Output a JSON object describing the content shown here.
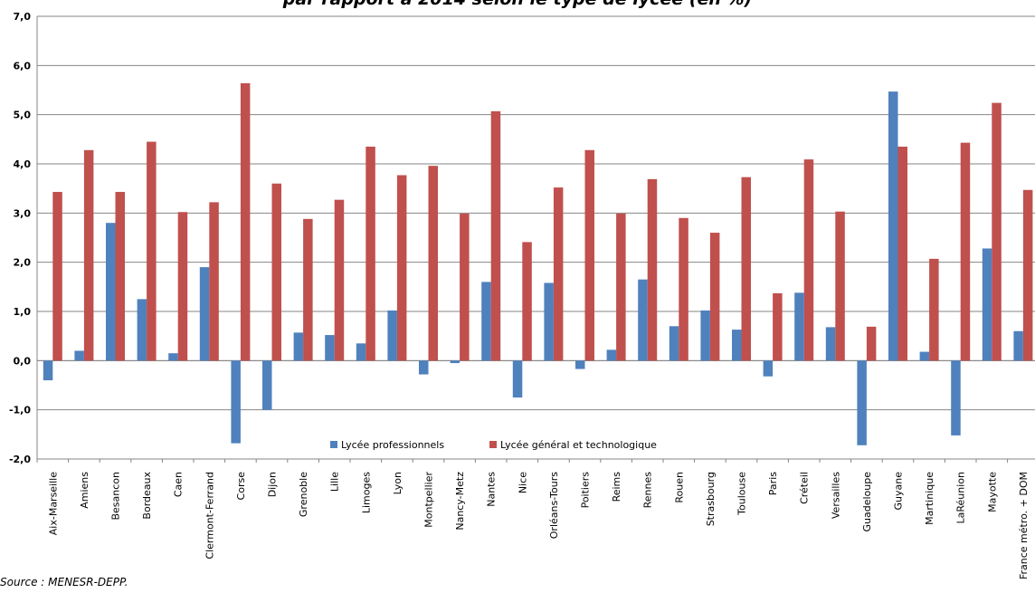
{
  "chart_data": {
    "type": "bar",
    "title": "par rapport à 2014 selon le type de lycée (en %)",
    "source": "Source : MENESR-DEPP.",
    "ylim": [
      -2.0,
      7.0
    ],
    "yticks": [
      "-2,0",
      "-1,0",
      "0,0",
      "1,0",
      "2,0",
      "3,0",
      "4,0",
      "5,0",
      "6,0",
      "7,0"
    ],
    "grid": true,
    "legend_position": "bottom-center",
    "categories": [
      "Aix-Marseille",
      "Amiens",
      "Besancon",
      "Bordeaux",
      "Caen",
      "Clermont-Ferrand",
      "Corse",
      "Dijon",
      "Grenoble",
      "Lille",
      "Limoges",
      "Lyon",
      "Montpellier",
      "Nancy-Metz",
      "Nantes",
      "Nice",
      "Orléans-Tours",
      "Poitiers",
      "Reims",
      "Rennes",
      "Rouen",
      "Strasbourg",
      "Toulouse",
      "Paris",
      "Créteil",
      "Versailles",
      "Guadeloupe",
      "Guyane",
      "Martinique",
      "LaRéunion",
      "Mayotte",
      "France métro. + DOM"
    ],
    "series": [
      {
        "name": "Lycée professionnels",
        "color": "#4F81BD",
        "values": [
          -0.4,
          0.2,
          2.8,
          1.25,
          0.15,
          1.9,
          -1.68,
          -1.0,
          0.57,
          0.52,
          0.35,
          1.02,
          -0.28,
          -0.05,
          1.6,
          -0.75,
          1.58,
          -0.17,
          0.22,
          1.65,
          0.7,
          1.02,
          0.63,
          -0.32,
          1.38,
          0.68,
          -1.72,
          5.47,
          0.18,
          -1.52,
          2.28,
          0.6
        ]
      },
      {
        "name": "Lycée général et technologique",
        "color": "#C0504D",
        "values": [
          3.43,
          4.28,
          3.43,
          4.45,
          3.02,
          3.22,
          5.64,
          3.6,
          2.88,
          3.27,
          4.35,
          3.77,
          3.96,
          2.99,
          5.07,
          2.41,
          3.52,
          4.28,
          2.99,
          3.69,
          2.9,
          2.6,
          3.73,
          1.37,
          4.09,
          3.03,
          0.69,
          4.35,
          2.07,
          4.43,
          5.24,
          3.47
        ]
      }
    ]
  }
}
